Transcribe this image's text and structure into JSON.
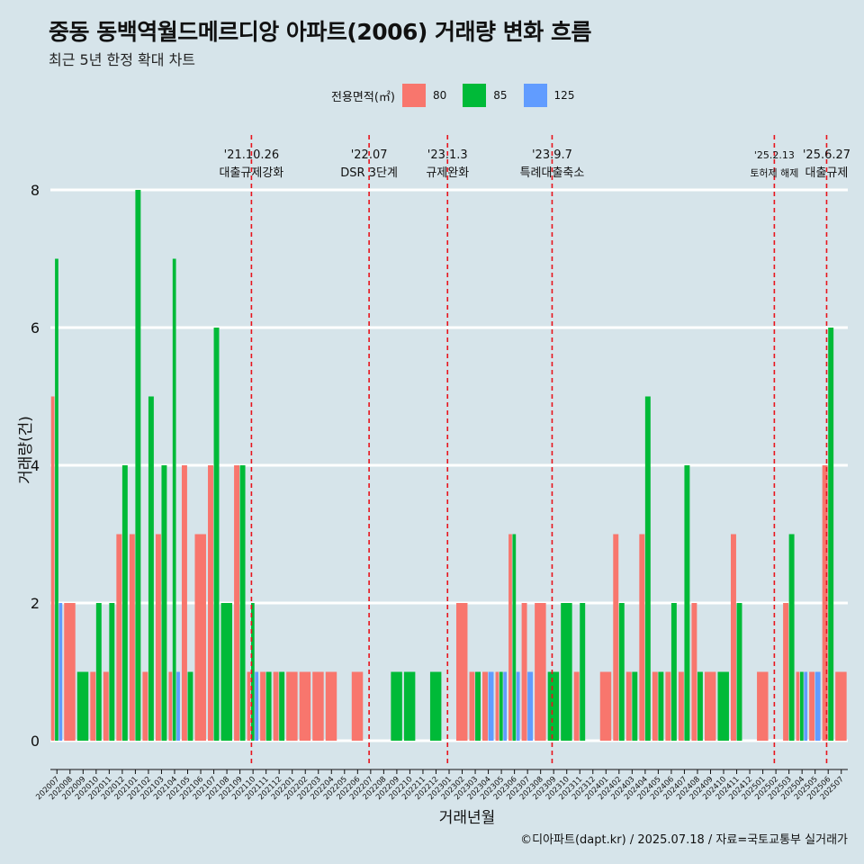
{
  "title": "중동 동백역월드메르디앙 아파트(2006) 거래량 변화 흐름",
  "subtitle": "최근 5년 한정 확대 차트",
  "source": "©디아파트(dapt.kr) / 2025.07.18 / 자료=국토교통부 실거래가",
  "colors": {
    "background": "#d6e4ea",
    "s80": "#f8766d",
    "s85": "#00ba38",
    "s125": "#619cff",
    "event_line": "#e8141c"
  },
  "chart_data": {
    "type": "bar",
    "title": "중동 동백역월드메르디앙 아파트(2006) 거래량 변화 흐름",
    "subtitle": "최근 5년 한정 확대 차트",
    "xlabel": "거래년월",
    "ylabel": "거래량(건)",
    "ylim": [
      0,
      8
    ],
    "yticks": [
      0,
      2,
      4,
      6,
      8
    ],
    "grid": true,
    "legend_title": "전용면적(㎡)",
    "legend_position": "top",
    "categories": [
      "202007",
      "202008",
      "202009",
      "202010",
      "202011",
      "202012",
      "202101",
      "202102",
      "202103",
      "202104",
      "202105",
      "202106",
      "202107",
      "202108",
      "202109",
      "202110",
      "202111",
      "202112",
      "202201",
      "202202",
      "202203",
      "202204",
      "202205",
      "202206",
      "202207",
      "202208",
      "202209",
      "202210",
      "202211",
      "202212",
      "202301",
      "202302",
      "202303",
      "202304",
      "202305",
      "202306",
      "202307",
      "202308",
      "202309",
      "202310",
      "202311",
      "202312",
      "202401",
      "202402",
      "202403",
      "202404",
      "202405",
      "202406",
      "202407",
      "202408",
      "202409",
      "202410",
      "202411",
      "202412",
      "202501",
      "202502",
      "202503",
      "202504",
      "202505",
      "202506",
      "202507"
    ],
    "series": [
      {
        "name": "80",
        "values": [
          5,
          2,
          0,
          1,
          1,
          3,
          3,
          1,
          3,
          1,
          4,
          3,
          4,
          0,
          4,
          1,
          1,
          1,
          1,
          1,
          1,
          1,
          0,
          1,
          0,
          0,
          0,
          0,
          0,
          0,
          0,
          2,
          1,
          1,
          1,
          3,
          2,
          2,
          0,
          0,
          1,
          0,
          1,
          3,
          1,
          3,
          1,
          1,
          1,
          2,
          1,
          0,
          3,
          0,
          1,
          0,
          2,
          1,
          1,
          4,
          1
        ]
      },
      {
        "name": "85",
        "values": [
          7,
          0,
          1,
          2,
          2,
          4,
          8,
          5,
          4,
          7,
          1,
          0,
          6,
          2,
          4,
          2,
          1,
          1,
          0,
          0,
          0,
          0,
          0,
          0,
          0,
          0,
          1,
          1,
          0,
          1,
          0,
          0,
          1,
          0,
          1,
          3,
          0,
          0,
          1,
          2,
          2,
          0,
          0,
          2,
          1,
          5,
          1,
          2,
          4,
          1,
          0,
          1,
          2,
          0,
          0,
          0,
          3,
          1,
          0,
          6,
          0
        ]
      },
      {
        "name": "125",
        "values": [
          2,
          0,
          0,
          0,
          0,
          0,
          0,
          0,
          0,
          1,
          0,
          0,
          0,
          0,
          0,
          1,
          0,
          0,
          0,
          0,
          0,
          0,
          0,
          0,
          0,
          0,
          0,
          0,
          0,
          0,
          0,
          0,
          0,
          1,
          1,
          1,
          1,
          0,
          0,
          0,
          0,
          0,
          0,
          0,
          0,
          0,
          0,
          0,
          0,
          0,
          0,
          0,
          0,
          0,
          0,
          0,
          0,
          1,
          1,
          0,
          0
        ]
      }
    ],
    "events": [
      {
        "month": "202110",
        "date": "'21.10.26",
        "label": "대출규제강화"
      },
      {
        "month": "202207",
        "date": "'22.07",
        "label": "DSR 3단계"
      },
      {
        "month": "202301",
        "date": "'23.1.3",
        "label": "규제완화"
      },
      {
        "month": "202309",
        "date": "'23.9.7",
        "label": "특례대출축소"
      },
      {
        "month": "202502",
        "date": "'25.2.13",
        "label": "토허제 해제"
      },
      {
        "month": "202506",
        "date": "'25.6.27",
        "label": "대출규제"
      }
    ]
  }
}
